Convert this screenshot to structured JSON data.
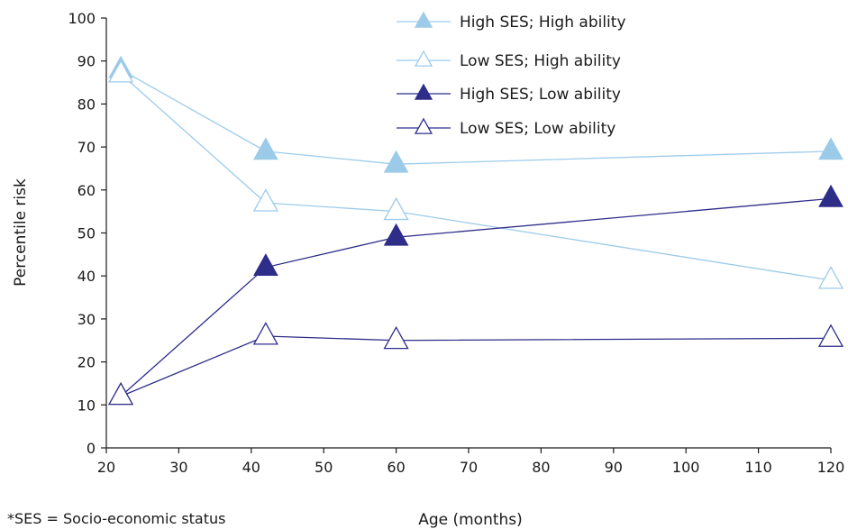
{
  "chart_data": {
    "type": "line",
    "xlabel": "Age (months)",
    "ylabel": "Percentile risk",
    "xlim": [
      20,
      120
    ],
    "ylim": [
      0,
      100
    ],
    "xticks": [
      20,
      30,
      40,
      50,
      60,
      70,
      80,
      90,
      100,
      110,
      120
    ],
    "yticks": [
      0,
      10,
      20,
      30,
      40,
      50,
      60,
      70,
      80,
      90,
      100
    ],
    "grid": false,
    "legend_position": "top-right",
    "x": [
      22,
      42,
      60,
      120
    ],
    "series": [
      {
        "name": "High SES; High ability",
        "values": [
          88,
          69,
          66,
          69
        ],
        "color": "#9ccbea",
        "marker": "filled-triangle"
      },
      {
        "name": "Low SES; High ability",
        "values": [
          87,
          57,
          55,
          39
        ],
        "color": "#9ccbea",
        "marker": "open-triangle"
      },
      {
        "name": "High SES; Low ability",
        "values": [
          12,
          42,
          49,
          58
        ],
        "color": "#2e2d8a",
        "marker": "filled-triangle"
      },
      {
        "name": "Low SES; Low ability",
        "values": [
          12,
          26,
          25,
          25.5
        ],
        "color": "#2e2d8a",
        "marker": "open-triangle"
      }
    ],
    "footnote": "*SES = Socio-economic status"
  }
}
